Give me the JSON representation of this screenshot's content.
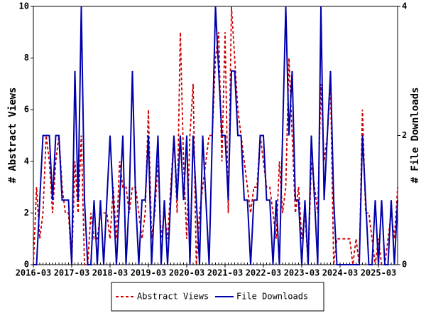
{
  "chart_data": {
    "type": "line",
    "x": [
      "2016-03",
      "2016-04",
      "2016-05",
      "2016-06",
      "2016-07",
      "2016-08",
      "2016-09",
      "2016-10",
      "2016-11",
      "2016-12",
      "2017-01",
      "2017-02",
      "2017-03",
      "2017-04",
      "2017-05",
      "2017-06",
      "2017-07",
      "2017-08",
      "2017-09",
      "2017-10",
      "2017-11",
      "2017-12",
      "2018-01",
      "2018-02",
      "2018-03",
      "2018-04",
      "2018-05",
      "2018-06",
      "2018-07",
      "2018-08",
      "2018-09",
      "2018-10",
      "2018-11",
      "2018-12",
      "2019-01",
      "2019-02",
      "2019-03",
      "2019-04",
      "2019-05",
      "2019-06",
      "2019-07",
      "2019-08",
      "2019-09",
      "2019-10",
      "2019-11",
      "2019-12",
      "2020-01",
      "2020-02",
      "2020-03",
      "2020-04",
      "2020-05",
      "2020-06",
      "2020-07",
      "2020-08",
      "2020-09",
      "2020-10",
      "2020-11",
      "2020-12",
      "2021-01",
      "2021-02",
      "2021-03",
      "2021-04",
      "2021-05",
      "2021-06",
      "2021-07",
      "2021-08",
      "2021-09",
      "2021-10",
      "2021-11",
      "2021-12",
      "2022-01",
      "2022-02",
      "2022-03",
      "2022-04",
      "2022-05",
      "2022-06",
      "2022-07",
      "2022-08",
      "2022-09",
      "2022-10",
      "2022-11",
      "2022-12",
      "2023-01",
      "2023-02",
      "2023-03",
      "2023-04",
      "2023-05",
      "2023-06",
      "2023-07",
      "2023-08",
      "2023-09",
      "2023-10",
      "2023-11",
      "2023-12",
      "2024-01",
      "2024-02",
      "2024-03",
      "2024-04",
      "2024-05",
      "2024-06",
      "2024-07",
      "2024-08",
      "2024-09",
      "2024-10",
      "2024-11",
      "2024-12",
      "2025-01",
      "2025-02",
      "2025-03",
      "2025-04",
      "2025-05",
      "2025-06",
      "2025-07",
      "2025-08",
      "2025-09"
    ],
    "series": [
      {
        "name": "Abstract Views",
        "color": "#cc0000",
        "dash": true,
        "values": [
          0,
          3,
          1,
          2,
          5,
          4,
          2,
          4,
          5,
          3,
          2,
          2,
          0,
          4,
          2,
          5,
          0,
          0,
          2,
          1,
          1,
          2,
          2,
          2,
          1,
          3,
          1,
          4,
          3,
          3,
          2,
          3,
          3,
          2,
          1,
          2,
          6,
          1,
          2,
          4,
          1,
          2,
          1,
          3,
          5,
          2,
          9,
          4,
          1,
          5,
          7,
          0,
          2,
          3,
          4,
          5,
          5,
          8,
          9,
          4,
          9,
          2,
          10,
          8,
          6,
          5,
          4,
          3,
          2,
          3,
          3,
          5,
          4,
          3,
          3,
          2,
          1,
          4,
          2,
          3,
          8,
          5,
          2,
          3,
          1,
          2,
          0,
          4,
          3,
          2,
          7,
          4,
          5,
          7,
          0,
          1,
          1,
          1,
          1,
          1,
          0,
          1,
          0,
          6,
          2,
          2,
          1,
          0,
          1,
          0,
          0,
          1,
          2,
          1,
          3
        ]
      },
      {
        "name": "File Downloads",
        "color": "#0000aa",
        "axis": "y2",
        "values": [
          0,
          0,
          1,
          2,
          2,
          2,
          1,
          2,
          2,
          1,
          1,
          1,
          0,
          3,
          1,
          4,
          1,
          0,
          0,
          1,
          0,
          1,
          0,
          1,
          2,
          1,
          0,
          1,
          2,
          0,
          1,
          3,
          1,
          0,
          1,
          1,
          2,
          0,
          1,
          2,
          0,
          1,
          0,
          1,
          2,
          1,
          2,
          1,
          2,
          0,
          2,
          1,
          0,
          2,
          1,
          0,
          2,
          4,
          3,
          2,
          2,
          1,
          3,
          3,
          2,
          2,
          1,
          1,
          0,
          1,
          1,
          2,
          2,
          1,
          1,
          0,
          1,
          0,
          2,
          4,
          2,
          3,
          1,
          1,
          0,
          1,
          0,
          2,
          1,
          0,
          4,
          1,
          2,
          3,
          1,
          0,
          0,
          0,
          0,
          0,
          0,
          0,
          0,
          2,
          1,
          0,
          0,
          1,
          0,
          1,
          0,
          0,
          1,
          0,
          1
        ]
      }
    ],
    "xticks": [
      "2016-03",
      "2017-03",
      "2018-03",
      "2019-03",
      "2020-03",
      "2021-03",
      "2022-03",
      "2023-03",
      "2024-03",
      "2025-03"
    ],
    "ylim": [
      0,
      10
    ],
    "yticks": [
      0,
      2,
      4,
      6,
      8,
      10
    ],
    "y2lim": [
      0,
      4
    ],
    "y2ticks": [
      0,
      2,
      4
    ],
    "ylabel": "# Abstract Views",
    "y2label": "# File Downloads"
  }
}
